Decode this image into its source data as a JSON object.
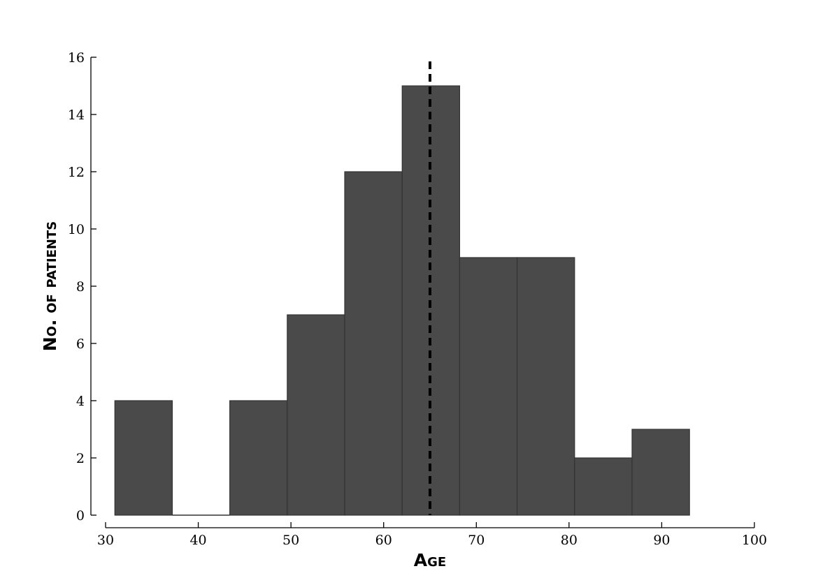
{
  "chart_data": {
    "type": "bar",
    "histogram": true,
    "bins": [
      {
        "x0": 31.0,
        "x1": 37.2,
        "count": 4
      },
      {
        "x0": 37.2,
        "x1": 43.4,
        "count": 0
      },
      {
        "x0": 43.4,
        "x1": 49.6,
        "count": 4
      },
      {
        "x0": 49.6,
        "x1": 55.8,
        "count": 7
      },
      {
        "x0": 55.8,
        "x1": 62.0,
        "count": 12
      },
      {
        "x0": 62.0,
        "x1": 68.2,
        "count": 15
      },
      {
        "x0": 68.2,
        "x1": 74.4,
        "count": 9
      },
      {
        "x0": 74.4,
        "x1": 80.6,
        "count": 9
      },
      {
        "x0": 80.6,
        "x1": 86.8,
        "count": 2
      },
      {
        "x0": 86.8,
        "x1": 93.0,
        "count": 3
      }
    ],
    "reference_line": {
      "x": 65,
      "style": "dashed",
      "color": "#000000"
    },
    "xlabel": "Age",
    "ylabel": "No. of patients",
    "xlim": [
      30,
      100
    ],
    "ylim": [
      0,
      16
    ],
    "xticks": [
      30,
      40,
      50,
      60,
      70,
      80,
      90,
      100
    ],
    "yticks": [
      0,
      2,
      4,
      6,
      8,
      10,
      12,
      14,
      16
    ],
    "grid": false,
    "bar_color": "#4a4a4a",
    "edge_color": "#333333"
  }
}
